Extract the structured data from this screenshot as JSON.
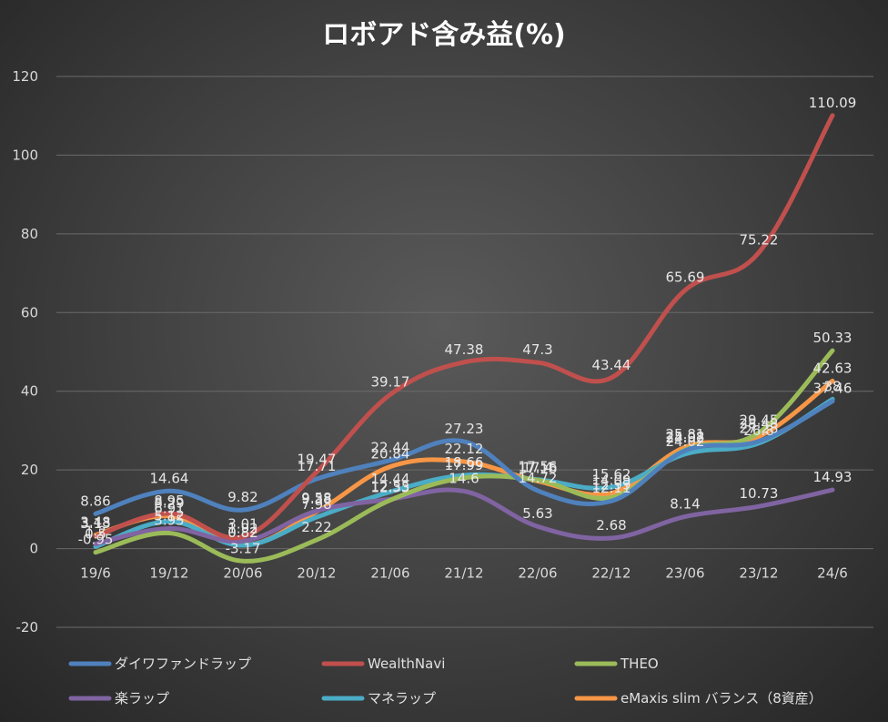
{
  "chart_data": {
    "type": "line",
    "title": "ロボアド含み益(%)",
    "xlabel": "",
    "ylabel": "",
    "categories": [
      "19/6",
      "19/12",
      "20/06",
      "20/12",
      "21/06",
      "21/12",
      "22/06",
      "22/12",
      "23/06",
      "23/12",
      "24/6"
    ],
    "ylim": [
      -20,
      120
    ],
    "yticks": [
      -20,
      0,
      20,
      40,
      60,
      80,
      100,
      120
    ],
    "grid": true,
    "legend_position": "bottom",
    "series": [
      {
        "name": "ダイワファンドラップ",
        "color": "#4f81bd",
        "values": [
          8.86,
          14.64,
          9.82,
          17.71,
          22.44,
          27.23,
          14.72,
          12.11,
          24.92,
          27.28,
          37.46
        ]
      },
      {
        "name": "WealthNavi",
        "color": "#c0504d",
        "values": [
          3.13,
          8.95,
          3.01,
          19.47,
          39.17,
          47.38,
          47.3,
          43.44,
          65.69,
          75.22,
          110.09
        ]
      },
      {
        "name": "THEO",
        "color": "#9bbb59",
        "values": [
          -0.95,
          3.95,
          -3.17,
          2.22,
          12.33,
          17.99,
          17.4,
          12.99,
          25.08,
          29.45,
          50.33
        ]
      },
      {
        "name": "楽ラップ",
        "color": "#8064a2",
        "values": [
          1.2,
          5.12,
          1.92,
          9.58,
          12.55,
          14.6,
          5.63,
          2.68,
          8.14,
          10.73,
          14.93
        ]
      },
      {
        "name": "マネラップ",
        "color": "#4bacc6",
        "values": [
          0.5,
          6.91,
          0.82,
          7.98,
          14.44,
          18.66,
          17.56,
          15.62,
          24.02,
          26.8,
          38.0
        ]
      },
      {
        "name": "eMaxis slim バランス（8資産）",
        "color": "#f79646",
        "values": [
          3.48,
          8.29,
          0.82,
          9.38,
          20.84,
          22.12,
          17.16,
          14.09,
          25.81,
          28.48,
          42.63
        ]
      }
    ]
  }
}
